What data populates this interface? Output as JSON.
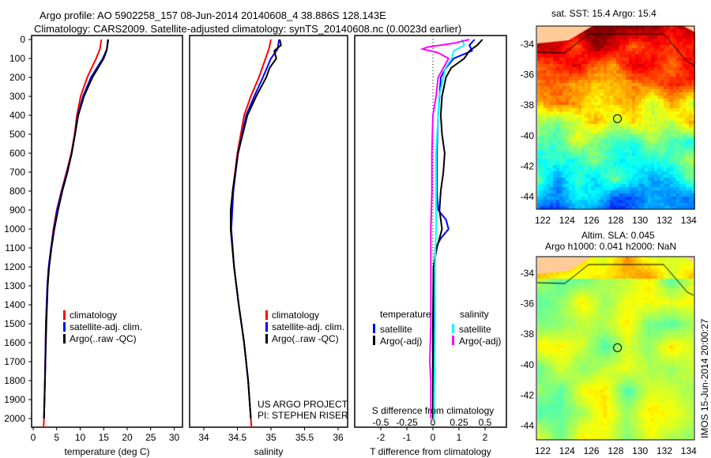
{
  "title_line1": "Argo profile: AO 5902258_157 08-Jun-2014 20140608_4 38.886S 128.143E",
  "title_line2": "Climatology: CARS2009. Satellite-adjusted climatology: synTS_20140608.nc (0.0023d earlier)",
  "chart_data": [
    {
      "type": "line",
      "name": "temperature",
      "xlabel": "temperature (deg C)",
      "ylabel": "depth",
      "xlim": [
        -1.5,
        32
      ],
      "ylim": [
        2060,
        0
      ],
      "xticks": [
        "0",
        "5",
        "10",
        "15",
        "20",
        "25",
        "30"
      ],
      "yticks": [
        "0",
        "100",
        "200",
        "300",
        "400",
        "500",
        "600",
        "700",
        "800",
        "900",
        "1000",
        "1100",
        "1200",
        "1300",
        "1400",
        "1500",
        "1600",
        "1700",
        "1800",
        "1900",
        "2000"
      ],
      "legend": [
        "climatology",
        "satellite-adj. clim.",
        "Argo(..raw -QC)"
      ],
      "series": [
        {
          "name": "climatology",
          "color": "#ff0000",
          "depth": [
            0,
            50,
            100,
            200,
            300,
            400,
            500,
            600,
            700,
            800,
            900,
            1000,
            1100,
            1200,
            1300,
            1500,
            1800,
            2000,
            2050
          ],
          "values": [
            14.5,
            14.2,
            13.4,
            11.5,
            10.1,
            9.3,
            8.8,
            8.1,
            7.1,
            6.0,
            5.0,
            4.3,
            3.8,
            3.3,
            3.0,
            2.7,
            2.5,
            2.3,
            2.2
          ]
        },
        {
          "name": "satellite-adj. clim.",
          "color": "#0000ff",
          "depth": [
            0,
            50,
            100,
            200,
            300,
            400,
            500,
            600,
            700,
            800,
            900,
            1000,
            1100,
            1200,
            1300,
            1500,
            1800,
            2000
          ],
          "values": [
            15.9,
            15.7,
            14.8,
            12.3,
            10.6,
            9.5,
            8.9,
            8.2,
            7.2,
            6.1,
            5.1,
            4.4,
            3.8,
            3.3,
            3.0,
            2.7,
            2.5,
            2.3
          ]
        },
        {
          "name": "Argo",
          "color": "#000000",
          "depth": [
            0,
            30,
            60,
            100,
            200,
            300,
            400,
            500,
            600,
            700,
            800,
            900,
            1000,
            1100,
            1200,
            1300,
            1500,
            1800,
            2000
          ],
          "values": [
            16.0,
            15.8,
            15.6,
            15.0,
            12.6,
            10.8,
            9.6,
            8.9,
            8.2,
            7.3,
            6.2,
            5.3,
            4.5,
            3.9,
            3.4,
            3.1,
            2.8,
            2.5,
            2.3
          ]
        }
      ]
    },
    {
      "type": "line",
      "name": "salinity",
      "xlabel": "salinity",
      "xlim": [
        33.8,
        36.1
      ],
      "ylim": [
        2060,
        0
      ],
      "xticks": [
        "34",
        "34.5",
        "35",
        "35.5",
        "36"
      ],
      "legend": [
        "climatology",
        "satellite-adj. clim.",
        "Argo(..raw -QC)"
      ],
      "annotation": [
        "US ARGO PROJECT",
        "PI: STEPHEN RISER"
      ],
      "series": [
        {
          "name": "climatology",
          "color": "#ff0000",
          "depth": [
            0,
            50,
            100,
            200,
            300,
            400,
            600,
            800,
            1000,
            1200,
            1400,
            1600,
            1800,
            2000,
            2050
          ],
          "values": [
            35.0,
            34.97,
            34.92,
            34.82,
            34.7,
            34.6,
            34.5,
            34.43,
            34.4,
            34.45,
            34.52,
            34.6,
            34.66,
            34.7,
            34.71
          ]
        },
        {
          "name": "satellite-adj. clim.",
          "color": "#0000ff",
          "depth": [
            0,
            50,
            100,
            200,
            300,
            400,
            600,
            800,
            1000,
            1200,
            1400,
            1600,
            1800,
            2000
          ],
          "values": [
            35.12,
            35.1,
            35.0,
            34.88,
            34.75,
            34.63,
            34.51,
            34.44,
            34.41,
            34.45,
            34.52,
            34.6,
            34.66,
            34.7
          ]
        },
        {
          "name": "Argo",
          "color": "#000000",
          "depth": [
            0,
            30,
            60,
            100,
            150,
            200,
            300,
            400,
            600,
            800,
            900,
            1000,
            1200,
            1400,
            1600,
            1800,
            2000
          ],
          "values": [
            35.13,
            35.15,
            35.05,
            35.08,
            34.98,
            34.93,
            34.78,
            34.65,
            34.51,
            34.43,
            34.4,
            34.4,
            34.45,
            34.52,
            34.6,
            34.66,
            34.7
          ]
        }
      ]
    },
    {
      "type": "line",
      "name": "difference",
      "xlabel": "T difference from climatology",
      "x2label": "S difference from climatology",
      "xlim": [
        -3.0,
        2.8
      ],
      "ylim": [
        2060,
        0
      ],
      "xticks": [
        "-2",
        "-1",
        "0",
        "1",
        "2"
      ],
      "x2ticks": [
        "-0.5",
        "-0.25",
        "0",
        "0.25",
        "0.5"
      ],
      "legend_temperature": {
        "title": "temperature",
        "items": [
          "satellite",
          "Argo(-adj)"
        ]
      },
      "legend_salinity": {
        "title": "salinity",
        "items": [
          "satellite",
          "Argo(-adj)"
        ]
      },
      "series": [
        {
          "name": "T satellite",
          "color": "#0000ff",
          "axis": "T",
          "depth": [
            0,
            30,
            60,
            100,
            150,
            200,
            300,
            400,
            600,
            800,
            900,
            950,
            1000,
            1050,
            1100,
            1200,
            1500,
            2000
          ],
          "values": [
            1.6,
            1.4,
            1.5,
            0.8,
            0.5,
            0.3,
            0.25,
            0.2,
            0.15,
            0.15,
            0.2,
            0.5,
            0.6,
            0.3,
            0.1,
            0.05,
            0.03,
            0.02
          ]
        },
        {
          "name": "T Argo",
          "color": "#000000",
          "axis": "T",
          "depth": [
            0,
            30,
            60,
            100,
            150,
            200,
            300,
            400,
            500,
            600,
            700,
            800,
            900,
            1000,
            1100,
            1200,
            1500,
            2000
          ],
          "values": [
            1.9,
            1.7,
            1.4,
            1.2,
            0.7,
            0.5,
            0.35,
            0.3,
            0.35,
            0.45,
            0.4,
            0.3,
            0.25,
            0.35,
            0.15,
            0.02,
            0.0,
            0.0
          ]
        },
        {
          "name": "S satellite",
          "color": "#00ffff",
          "axis": "S",
          "depth": [
            0,
            30,
            60,
            100,
            150,
            200,
            300,
            400,
            600,
            800,
            1000,
            1200,
            1500,
            2000
          ],
          "values": [
            0.28,
            0.3,
            0.2,
            0.18,
            0.12,
            0.1,
            0.06,
            0.05,
            0.03,
            0.03,
            0.03,
            0.02,
            0.02,
            0.01
          ]
        },
        {
          "name": "S Argo",
          "color": "#ff00ff",
          "axis": "S",
          "depth": [
            0,
            20,
            40,
            50,
            70,
            100,
            150,
            200,
            300,
            400,
            600,
            800,
            1000,
            1200,
            1500,
            1700,
            1800,
            2000
          ],
          "values": [
            0.35,
            0.2,
            -0.05,
            -0.1,
            0.05,
            0.15,
            0.1,
            0.05,
            0.03,
            0.0,
            -0.01,
            -0.01,
            -0.02,
            -0.02,
            -0.02,
            -0.03,
            -0.02,
            -0.02
          ]
        }
      ]
    }
  ],
  "map_sst": {
    "title": "sat. SST: 15.4  Argo: 15.4",
    "xticks": [
      "122",
      "124",
      "126",
      "128",
      "130",
      "132",
      "134"
    ],
    "yticks": [
      "-34",
      "-36",
      "-38",
      "-40",
      "-42",
      "-44"
    ]
  },
  "map_sla": {
    "title1": "Altim. SLA: 0.045",
    "title2": "Argo h1000: 0.041 h2000: NaN",
    "xticks": [
      "122",
      "124",
      "126",
      "128",
      "130",
      "132",
      "134"
    ],
    "yticks": [
      "-34",
      "-36",
      "-38",
      "-40",
      "-42",
      "-44"
    ],
    "side_label": "IMOS 15-Jun-2014 20:00:27"
  },
  "float_position": {
    "lon": 128.143,
    "lat": -38.886
  }
}
